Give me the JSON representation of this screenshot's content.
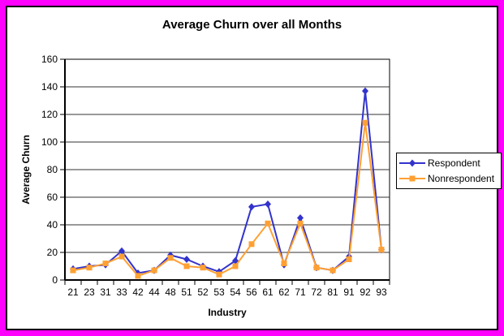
{
  "frame": {
    "border_color": "#FF00FF"
  },
  "chart_data": {
    "type": "line",
    "title": "Average Churn over all Months",
    "xlabel": "Industry",
    "ylabel": "Average Churn",
    "categories": [
      "21",
      "23",
      "31",
      "33",
      "42",
      "44",
      "48",
      "51",
      "52",
      "53",
      "54",
      "56",
      "61",
      "62",
      "71",
      "72",
      "81",
      "91",
      "92",
      "93"
    ],
    "series": [
      {
        "name": "Respondent",
        "color": "#3333CC",
        "marker": "diamond",
        "values": [
          8,
          10,
          11,
          21,
          5,
          7,
          18,
          15,
          10,
          6,
          14,
          53,
          55,
          11,
          45,
          9,
          7,
          17,
          137,
          22
        ]
      },
      {
        "name": "Nonrespondent",
        "color": "#FFA033",
        "marker": "square",
        "values": [
          7,
          9,
          12,
          17,
          3,
          7,
          16,
          10,
          9,
          4,
          10,
          26,
          41,
          12,
          41,
          9,
          7,
          15,
          114,
          22
        ]
      }
    ],
    "ylim": [
      0,
      160
    ],
    "ytick_step": 20,
    "grid": true,
    "legend_position": "right",
    "axis_color": "#000000",
    "gridline_color": "#333333",
    "plot_background": "#FFFFFF"
  }
}
